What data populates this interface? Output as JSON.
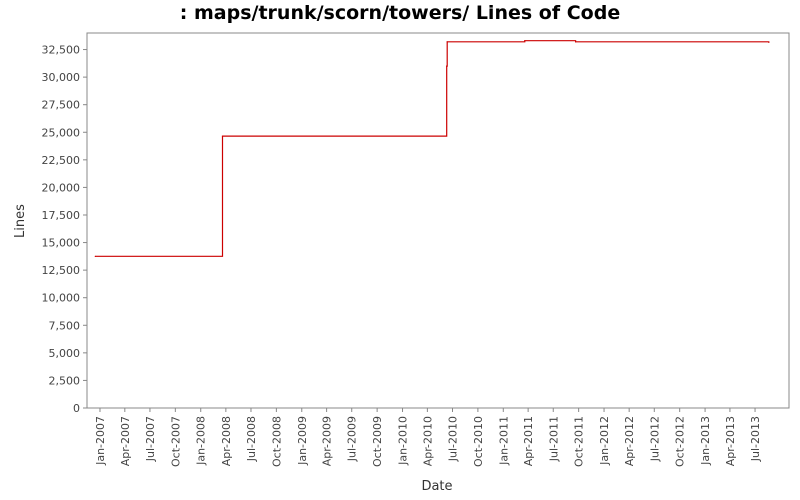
{
  "chart_data": {
    "type": "line",
    "title": ": maps/trunk/scorn/towers/ Lines of Code",
    "xlabel": "Date",
    "ylabel": "Lines",
    "ylim": [
      0,
      34000
    ],
    "y_ticks": [
      0,
      2500,
      5000,
      7500,
      10000,
      12500,
      15000,
      17500,
      20000,
      22500,
      25000,
      27500,
      30000,
      32500
    ],
    "y_tick_labels": [
      "0",
      "2,500",
      "5,000",
      "7,500",
      "10,000",
      "12,500",
      "15,000",
      "17,500",
      "20,000",
      "22,500",
      "25,000",
      "27,500",
      "30,000",
      "32,500"
    ],
    "xlim": [
      "2006-11-15",
      "2013-11-01"
    ],
    "x_ticks": [
      "2007-01-01",
      "2007-04-01",
      "2007-07-01",
      "2007-10-01",
      "2008-01-01",
      "2008-04-01",
      "2008-07-01",
      "2008-10-01",
      "2009-01-01",
      "2009-04-01",
      "2009-07-01",
      "2009-10-01",
      "2010-01-01",
      "2010-04-01",
      "2010-07-01",
      "2010-10-01",
      "2011-01-01",
      "2011-04-01",
      "2011-07-01",
      "2011-10-01",
      "2012-01-01",
      "2012-04-01",
      "2012-07-01",
      "2012-10-01",
      "2013-01-01",
      "2013-04-01",
      "2013-07-01"
    ],
    "x_tick_labels": [
      "Jan-2007",
      "Apr-2007",
      "Jul-2007",
      "Oct-2007",
      "Jan-2008",
      "Apr-2008",
      "Jul-2008",
      "Oct-2008",
      "Jan-2009",
      "Apr-2009",
      "Jul-2009",
      "Oct-2009",
      "Jan-2010",
      "Apr-2010",
      "Jul-2010",
      "Oct-2010",
      "Jan-2011",
      "Apr-2011",
      "Jul-2011",
      "Oct-2011",
      "Jan-2012",
      "Apr-2012",
      "Jul-2012",
      "Oct-2012",
      "Jan-2013",
      "Apr-2013",
      "Jul-2013"
    ],
    "grid": false,
    "line_color": "#cc0000",
    "step": true,
    "series": [
      {
        "points": [
          {
            "x": "2006-12-15",
            "y": 13750
          },
          {
            "x": "2008-03-20",
            "y": 24650
          },
          {
            "x": "2010-06-10",
            "y": 31000
          },
          {
            "x": "2010-06-12",
            "y": 33200
          },
          {
            "x": "2011-03-20",
            "y": 33300
          },
          {
            "x": "2011-09-20",
            "y": 33200
          },
          {
            "x": "2013-08-20",
            "y": 33150
          }
        ]
      }
    ]
  }
}
